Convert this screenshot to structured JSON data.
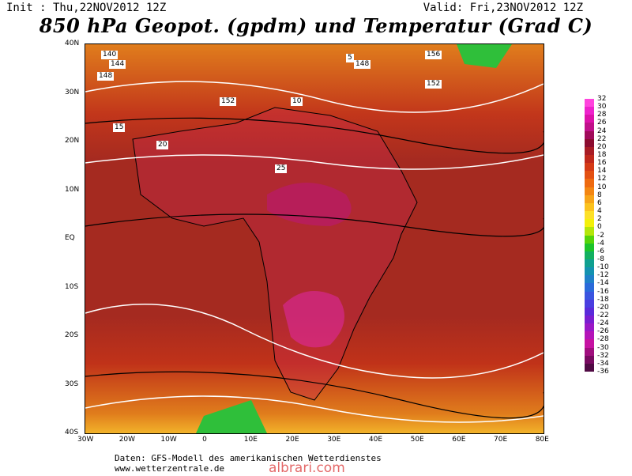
{
  "header": {
    "init": "Init : Thu,22NOV2012 12Z",
    "valid": "Valid: Fri,23NOV2012 12Z",
    "title": "850 hPa Geopot. (gpdm) und Temperatur (Grad C)"
  },
  "lat_ticks": [
    "40N",
    "30N",
    "20N",
    "10N",
    "EQ",
    "10S",
    "20S",
    "30S",
    "40S"
  ],
  "lon_ticks": [
    "30W",
    "20W",
    "10W",
    "0",
    "10E",
    "20E",
    "30E",
    "40E",
    "50E",
    "60E",
    "70E",
    "80E"
  ],
  "colorbar": {
    "labels": [
      "32",
      "30",
      "28",
      "26",
      "24",
      "22",
      "20",
      "18",
      "16",
      "14",
      "12",
      "10",
      "8",
      "6",
      "4",
      "2",
      "0",
      "-2",
      "-4",
      "-6",
      "-8",
      "-10",
      "-12",
      "-14",
      "-16",
      "-18",
      "-20",
      "-22",
      "-24",
      "-26",
      "-28",
      "-30",
      "-32",
      "-34",
      "-36"
    ],
    "colors": [
      "#ff44dd",
      "#ee22cc",
      "#dd11aa",
      "#c0108a",
      "#a00a5a",
      "#8c0c30",
      "#a81c25",
      "#c0281c",
      "#d53a16",
      "#e35012",
      "#ee6a10",
      "#f38612",
      "#f7a418",
      "#fbc21e",
      "#fde028",
      "#f3f00a",
      "#b4e60a",
      "#55d40a",
      "#1cc42a",
      "#12b060",
      "#10a090",
      "#1492b0",
      "#1f80c8",
      "#2a6ada",
      "#3a54e0",
      "#4a3ee0",
      "#5a2ada",
      "#7a1ed0",
      "#9a18c6",
      "#b414b8",
      "#c612a2",
      "#a00e7e",
      "#780a60",
      "#500a44"
    ]
  },
  "map_labels": [
    {
      "t": "140"
    },
    {
      "t": "144"
    },
    {
      "t": "148"
    },
    {
      "t": "152"
    },
    {
      "t": "10"
    },
    {
      "t": "15"
    },
    {
      "t": "20"
    },
    {
      "t": "25"
    },
    {
      "t": "5"
    },
    {
      "t": "148"
    },
    {
      "t": "152"
    },
    {
      "t": "156"
    }
  ],
  "footer": {
    "line1": "Daten: GFS-Modell des amerikanischen Wetterdienstes",
    "line2": "www.wetterzentrale.de"
  },
  "watermark": "albrari.com"
}
